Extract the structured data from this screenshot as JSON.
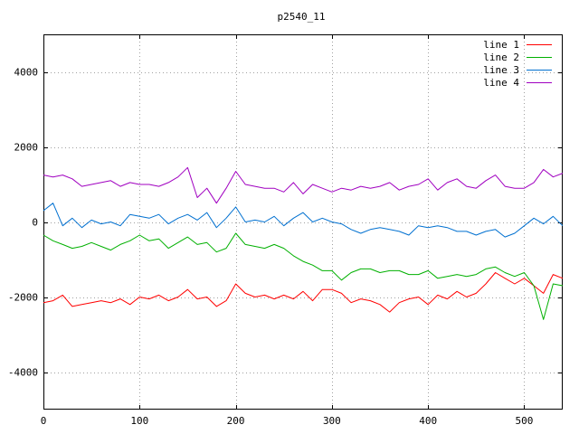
{
  "chart_data": {
    "type": "line",
    "title": "p2540_11",
    "xlabel": "",
    "ylabel": "",
    "xlim": [
      0,
      540
    ],
    "ylim": [
      -5000,
      5000
    ],
    "xticks": [
      0,
      100,
      200,
      300,
      400,
      500
    ],
    "yticks": [
      -4000,
      -2000,
      0,
      2000,
      4000
    ],
    "grid": true,
    "legend_position": "top-right",
    "series": [
      {
        "name": "line 1",
        "color": "#ff0000",
        "x": [
          0,
          10,
          20,
          30,
          40,
          50,
          60,
          70,
          80,
          90,
          100,
          110,
          120,
          130,
          140,
          150,
          160,
          170,
          180,
          190,
          200,
          210,
          220,
          230,
          240,
          250,
          260,
          270,
          280,
          290,
          300,
          310,
          320,
          330,
          340,
          350,
          360,
          370,
          380,
          390,
          400,
          410,
          420,
          430,
          440,
          450,
          460,
          470,
          480,
          490,
          500,
          510,
          520,
          530,
          540
        ],
        "y": [
          -2150,
          -2100,
          -1950,
          -2250,
          -2200,
          -2150,
          -2100,
          -2150,
          -2050,
          -2200,
          -2000,
          -2050,
          -1950,
          -2100,
          -2000,
          -1800,
          -2050,
          -2000,
          -2250,
          -2100,
          -1650,
          -1900,
          -2000,
          -1950,
          -2050,
          -1950,
          -2050,
          -1850,
          -2100,
          -1800,
          -1800,
          -1900,
          -2150,
          -2050,
          -2100,
          -2200,
          -2400,
          -2150,
          -2050,
          -2000,
          -2200,
          -1950,
          -2050,
          -1850,
          -2000,
          -1900,
          -1650,
          -1350,
          -1500,
          -1650,
          -1500,
          -1700,
          -1900,
          -1400,
          -1500
        ]
      },
      {
        "name": "line 2",
        "color": "#00b000",
        "x": [
          0,
          10,
          20,
          30,
          40,
          50,
          60,
          70,
          80,
          90,
          100,
          110,
          120,
          130,
          140,
          150,
          160,
          170,
          180,
          190,
          200,
          210,
          220,
          230,
          240,
          250,
          260,
          270,
          280,
          290,
          300,
          310,
          320,
          330,
          340,
          350,
          360,
          370,
          380,
          390,
          400,
          410,
          420,
          430,
          440,
          450,
          460,
          470,
          480,
          490,
          500,
          510,
          520,
          530,
          540
        ],
        "y": [
          -350,
          -500,
          -600,
          -700,
          -650,
          -550,
          -650,
          -750,
          -600,
          -500,
          -350,
          -500,
          -450,
          -700,
          -550,
          -400,
          -600,
          -550,
          -800,
          -700,
          -300,
          -600,
          -650,
          -700,
          -600,
          -700,
          -900,
          -1050,
          -1150,
          -1300,
          -1300,
          -1550,
          -1350,
          -1250,
          -1250,
          -1350,
          -1300,
          -1300,
          -1400,
          -1400,
          -1300,
          -1500,
          -1450,
          -1400,
          -1450,
          -1400,
          -1250,
          -1200,
          -1350,
          -1450,
          -1350,
          -1700,
          -2600,
          -1650,
          -1700
        ]
      },
      {
        "name": "line 3",
        "color": "#0070d0",
        "x": [
          0,
          10,
          20,
          30,
          40,
          50,
          60,
          70,
          80,
          90,
          100,
          110,
          120,
          130,
          140,
          150,
          160,
          170,
          180,
          190,
          200,
          210,
          220,
          230,
          240,
          250,
          260,
          270,
          280,
          290,
          300,
          310,
          320,
          330,
          340,
          350,
          360,
          370,
          380,
          390,
          400,
          410,
          420,
          430,
          440,
          450,
          460,
          470,
          480,
          490,
          500,
          510,
          520,
          530,
          540
        ],
        "y": [
          300,
          500,
          -100,
          100,
          -150,
          50,
          -50,
          0,
          -100,
          200,
          150,
          100,
          200,
          -50,
          100,
          200,
          50,
          250,
          -150,
          100,
          400,
          0,
          50,
          0,
          150,
          -100,
          100,
          250,
          0,
          100,
          0,
          -50,
          -200,
          -300,
          -200,
          -150,
          -200,
          -250,
          -350,
          -100,
          -150,
          -100,
          -150,
          -250,
          -250,
          -350,
          -250,
          -200,
          -400,
          -300,
          -100,
          100,
          -50,
          150,
          -100
        ]
      },
      {
        "name": "line 4",
        "color": "#a000c0",
        "x": [
          0,
          10,
          20,
          30,
          40,
          50,
          60,
          70,
          80,
          90,
          100,
          110,
          120,
          130,
          140,
          150,
          160,
          170,
          180,
          190,
          200,
          210,
          220,
          230,
          240,
          250,
          260,
          270,
          280,
          290,
          300,
          310,
          320,
          330,
          340,
          350,
          360,
          370,
          380,
          390,
          400,
          410,
          420,
          430,
          440,
          450,
          460,
          470,
          480,
          490,
          500,
          510,
          520,
          530,
          540
        ],
        "y": [
          1250,
          1200,
          1250,
          1150,
          950,
          1000,
          1050,
          1100,
          950,
          1050,
          1000,
          1000,
          950,
          1050,
          1200,
          1450,
          650,
          900,
          500,
          900,
          1350,
          1000,
          950,
          900,
          900,
          800,
          1050,
          750,
          1000,
          900,
          800,
          900,
          850,
          950,
          900,
          950,
          1050,
          850,
          950,
          1000,
          1150,
          850,
          1050,
          1150,
          950,
          900,
          1100,
          1250,
          950,
          900,
          900,
          1050,
          1400,
          1200,
          1300
        ]
      }
    ]
  }
}
